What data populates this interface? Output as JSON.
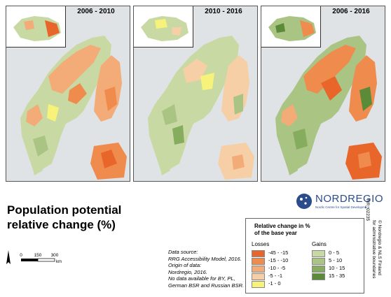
{
  "panels": [
    {
      "title": "2006 - 2010"
    },
    {
      "title": "2010 - 2016"
    },
    {
      "title": "2006 - 2016"
    }
  ],
  "map_title_line1": "Population potential",
  "map_title_line2": "relative change (%)",
  "logo": {
    "name": "NORDREGIO",
    "subtitle": "Nordic Centre for Spatial Development"
  },
  "map_id": "NR_02235",
  "copyright_line1": "© Nordregio & NLS Finland",
  "copyright_line2": "for administrative boundaries",
  "legend": {
    "title_line1": "Relative change in %",
    "title_line2": "of the base year",
    "losses_label": "Losses",
    "gains_label": "Gains",
    "losses": [
      {
        "label": "-45 - -15",
        "color": "#e8662a"
      },
      {
        "label": "-15 - -10",
        "color": "#ef8b4d"
      },
      {
        "label": "-10 - -5",
        "color": "#f3ab77"
      },
      {
        "label": "-5 - -1",
        "color": "#f7cfa6"
      },
      {
        "label": "-1 - 0",
        "color": "#f6f27a"
      }
    ],
    "gains": [
      {
        "label": "0 - 5",
        "color": "#c9d9a4"
      },
      {
        "label": "5 - 10",
        "color": "#aac484"
      },
      {
        "label": "10 - 15",
        "color": "#86ac5e"
      },
      {
        "label": "15 - 35",
        "color": "#5b8a38"
      }
    ]
  },
  "source": {
    "line1": "Data source:",
    "line2": "RRG Accessibility Model, 2016.",
    "line3": "Origin of data:",
    "line4": "Nordregio, 2016.",
    "line5": "No data available for BY, PL,",
    "line6": "German BSR and Russian BSR."
  },
  "scale": {
    "t0": "0",
    "t1": "150",
    "t2": "300",
    "unit": "km"
  }
}
